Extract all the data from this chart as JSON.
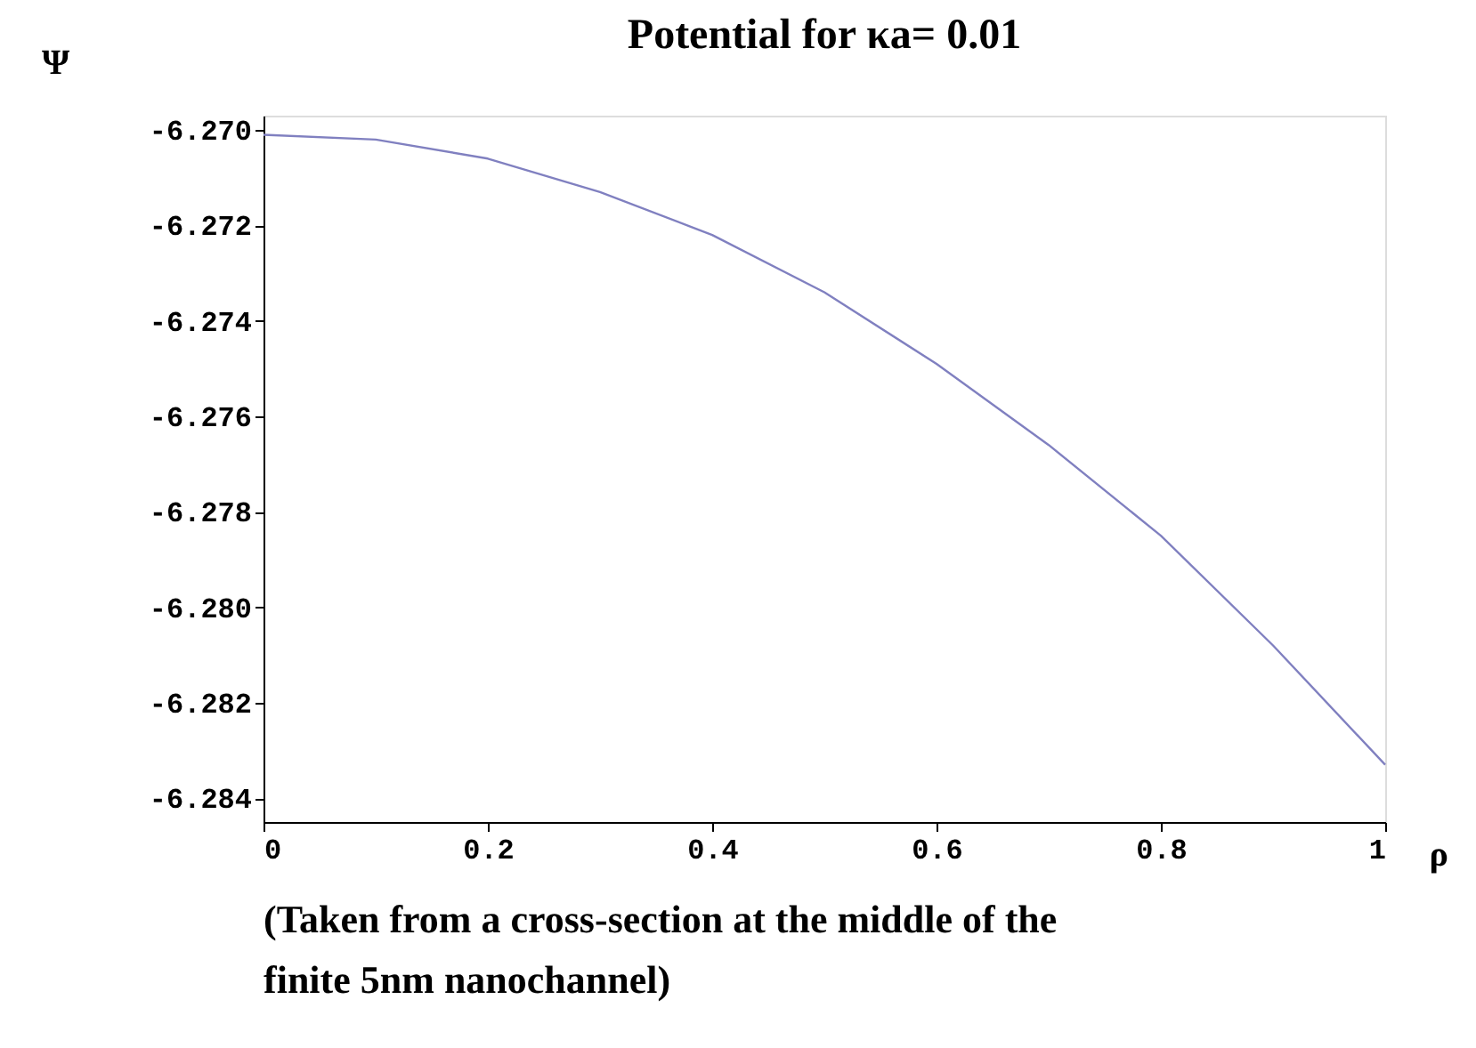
{
  "chart_data": {
    "type": "line",
    "title": "Potential for κa= 0.01",
    "xlabel": "ρ",
    "ylabel": "Ψ",
    "x": [
      0,
      0.1,
      0.2,
      0.3,
      0.4,
      0.5,
      0.6,
      0.7,
      0.8,
      0.9,
      1.0
    ],
    "series": [
      {
        "color": "#8080c0",
        "values": [
          -6.2701,
          -6.2702,
          -6.2706,
          -6.2713,
          -6.2722,
          -6.2734,
          -6.2749,
          -6.2766,
          -6.2785,
          -6.2808,
          -6.2833
        ]
      }
    ],
    "xlim": [
      0,
      1
    ],
    "xticks": [
      0,
      0.2,
      0.4,
      0.6,
      0.8,
      1
    ],
    "ylim": [
      -6.2845,
      -6.2697
    ],
    "yticks": [
      {
        "value": -6.27,
        "label": "-6.270"
      },
      {
        "value": -6.272,
        "label": "-6.272"
      },
      {
        "value": -6.274,
        "label": "-6.274"
      },
      {
        "value": -6.276,
        "label": "-6.276"
      },
      {
        "value": -6.278,
        "label": "-6.278"
      },
      {
        "value": -6.28,
        "label": "-6.280"
      },
      {
        "value": -6.282,
        "label": "-6.282"
      },
      {
        "value": -6.284,
        "label": "-6.284"
      }
    ],
    "grid": false,
    "marker": "none",
    "line_style": "solid",
    "annotations": [
      "(Taken from a cross-section at the middle of the\nfinite 5nm nanochannel)"
    ]
  }
}
